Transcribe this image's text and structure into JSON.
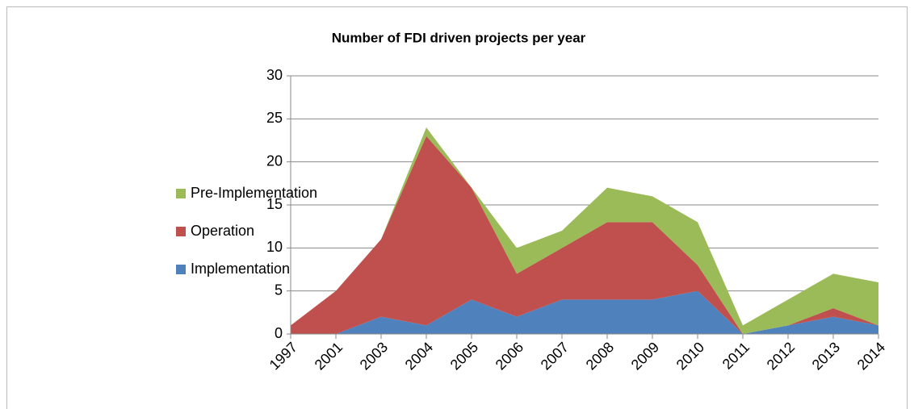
{
  "chart_data": {
    "type": "stacked_area",
    "title": "Number of FDI driven projects per year",
    "categories": [
      "1997",
      "2001",
      "2003",
      "2004",
      "2005",
      "2006",
      "2007",
      "2008",
      "2009",
      "2010",
      "2011",
      "2012",
      "2013",
      "2014"
    ],
    "series": [
      {
        "name": "Implementation",
        "color": "#4f81bd",
        "values": [
          0,
          0,
          2,
          1,
          4,
          2,
          4,
          4,
          4,
          5,
          0,
          1,
          2,
          1
        ]
      },
      {
        "name": "Operation",
        "color": "#c0504d",
        "values": [
          1,
          5,
          9,
          22,
          13,
          5,
          6,
          9,
          9,
          3,
          0,
          0,
          1,
          0
        ]
      },
      {
        "name": "Pre-Implementation",
        "color": "#9bbb59",
        "values": [
          0,
          0,
          0,
          1,
          0,
          3,
          2,
          4,
          3,
          5,
          1,
          3,
          4,
          5
        ]
      }
    ],
    "ylim": [
      0,
      30
    ],
    "yticks": [
      0,
      5,
      10,
      15,
      20,
      25,
      30
    ],
    "grid": true,
    "legend": "left"
  }
}
